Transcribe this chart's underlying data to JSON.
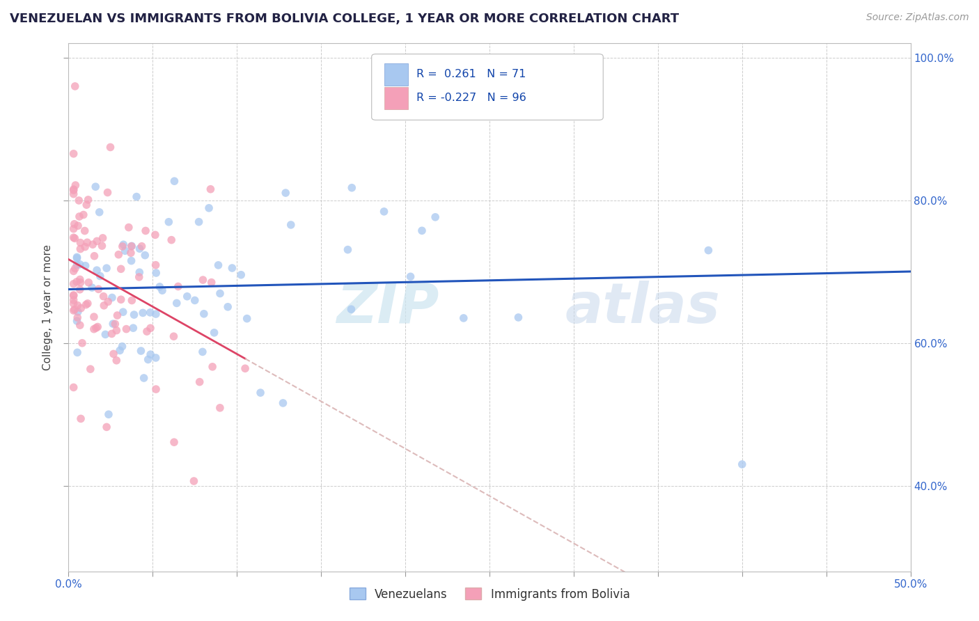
{
  "title": "VENEZUELAN VS IMMIGRANTS FROM BOLIVIA COLLEGE, 1 YEAR OR MORE CORRELATION CHART",
  "source": "Source: ZipAtlas.com",
  "ylabel": "College, 1 year or more",
  "xlim": [
    0.0,
    0.5
  ],
  "ylim": [
    0.28,
    1.02
  ],
  "r_blue": 0.261,
  "n_blue": 71,
  "r_pink": -0.227,
  "n_pink": 96,
  "blue_color": "#a8c8f0",
  "pink_color": "#f4a0b8",
  "blue_line_color": "#2255bb",
  "pink_line_color": "#dd4466",
  "watermark_zip": "ZIP",
  "watermark_atlas": "atlas",
  "legend_labels": [
    "Venezuelans",
    "Immigrants from Bolivia"
  ],
  "ytick_vals": [
    0.4,
    0.6,
    0.8,
    1.0
  ],
  "ytick_labels": [
    "40.0%",
    "60.0%",
    "80.0%",
    "100.0%"
  ],
  "xtick_vals": [
    0.0,
    0.05,
    0.1,
    0.15,
    0.2,
    0.25,
    0.3,
    0.35,
    0.4,
    0.45,
    0.5
  ],
  "xtick_labels": [
    "0.0%",
    "",
    "",
    "",
    "",
    "",
    "",
    "",
    "",
    "",
    "50.0%"
  ]
}
